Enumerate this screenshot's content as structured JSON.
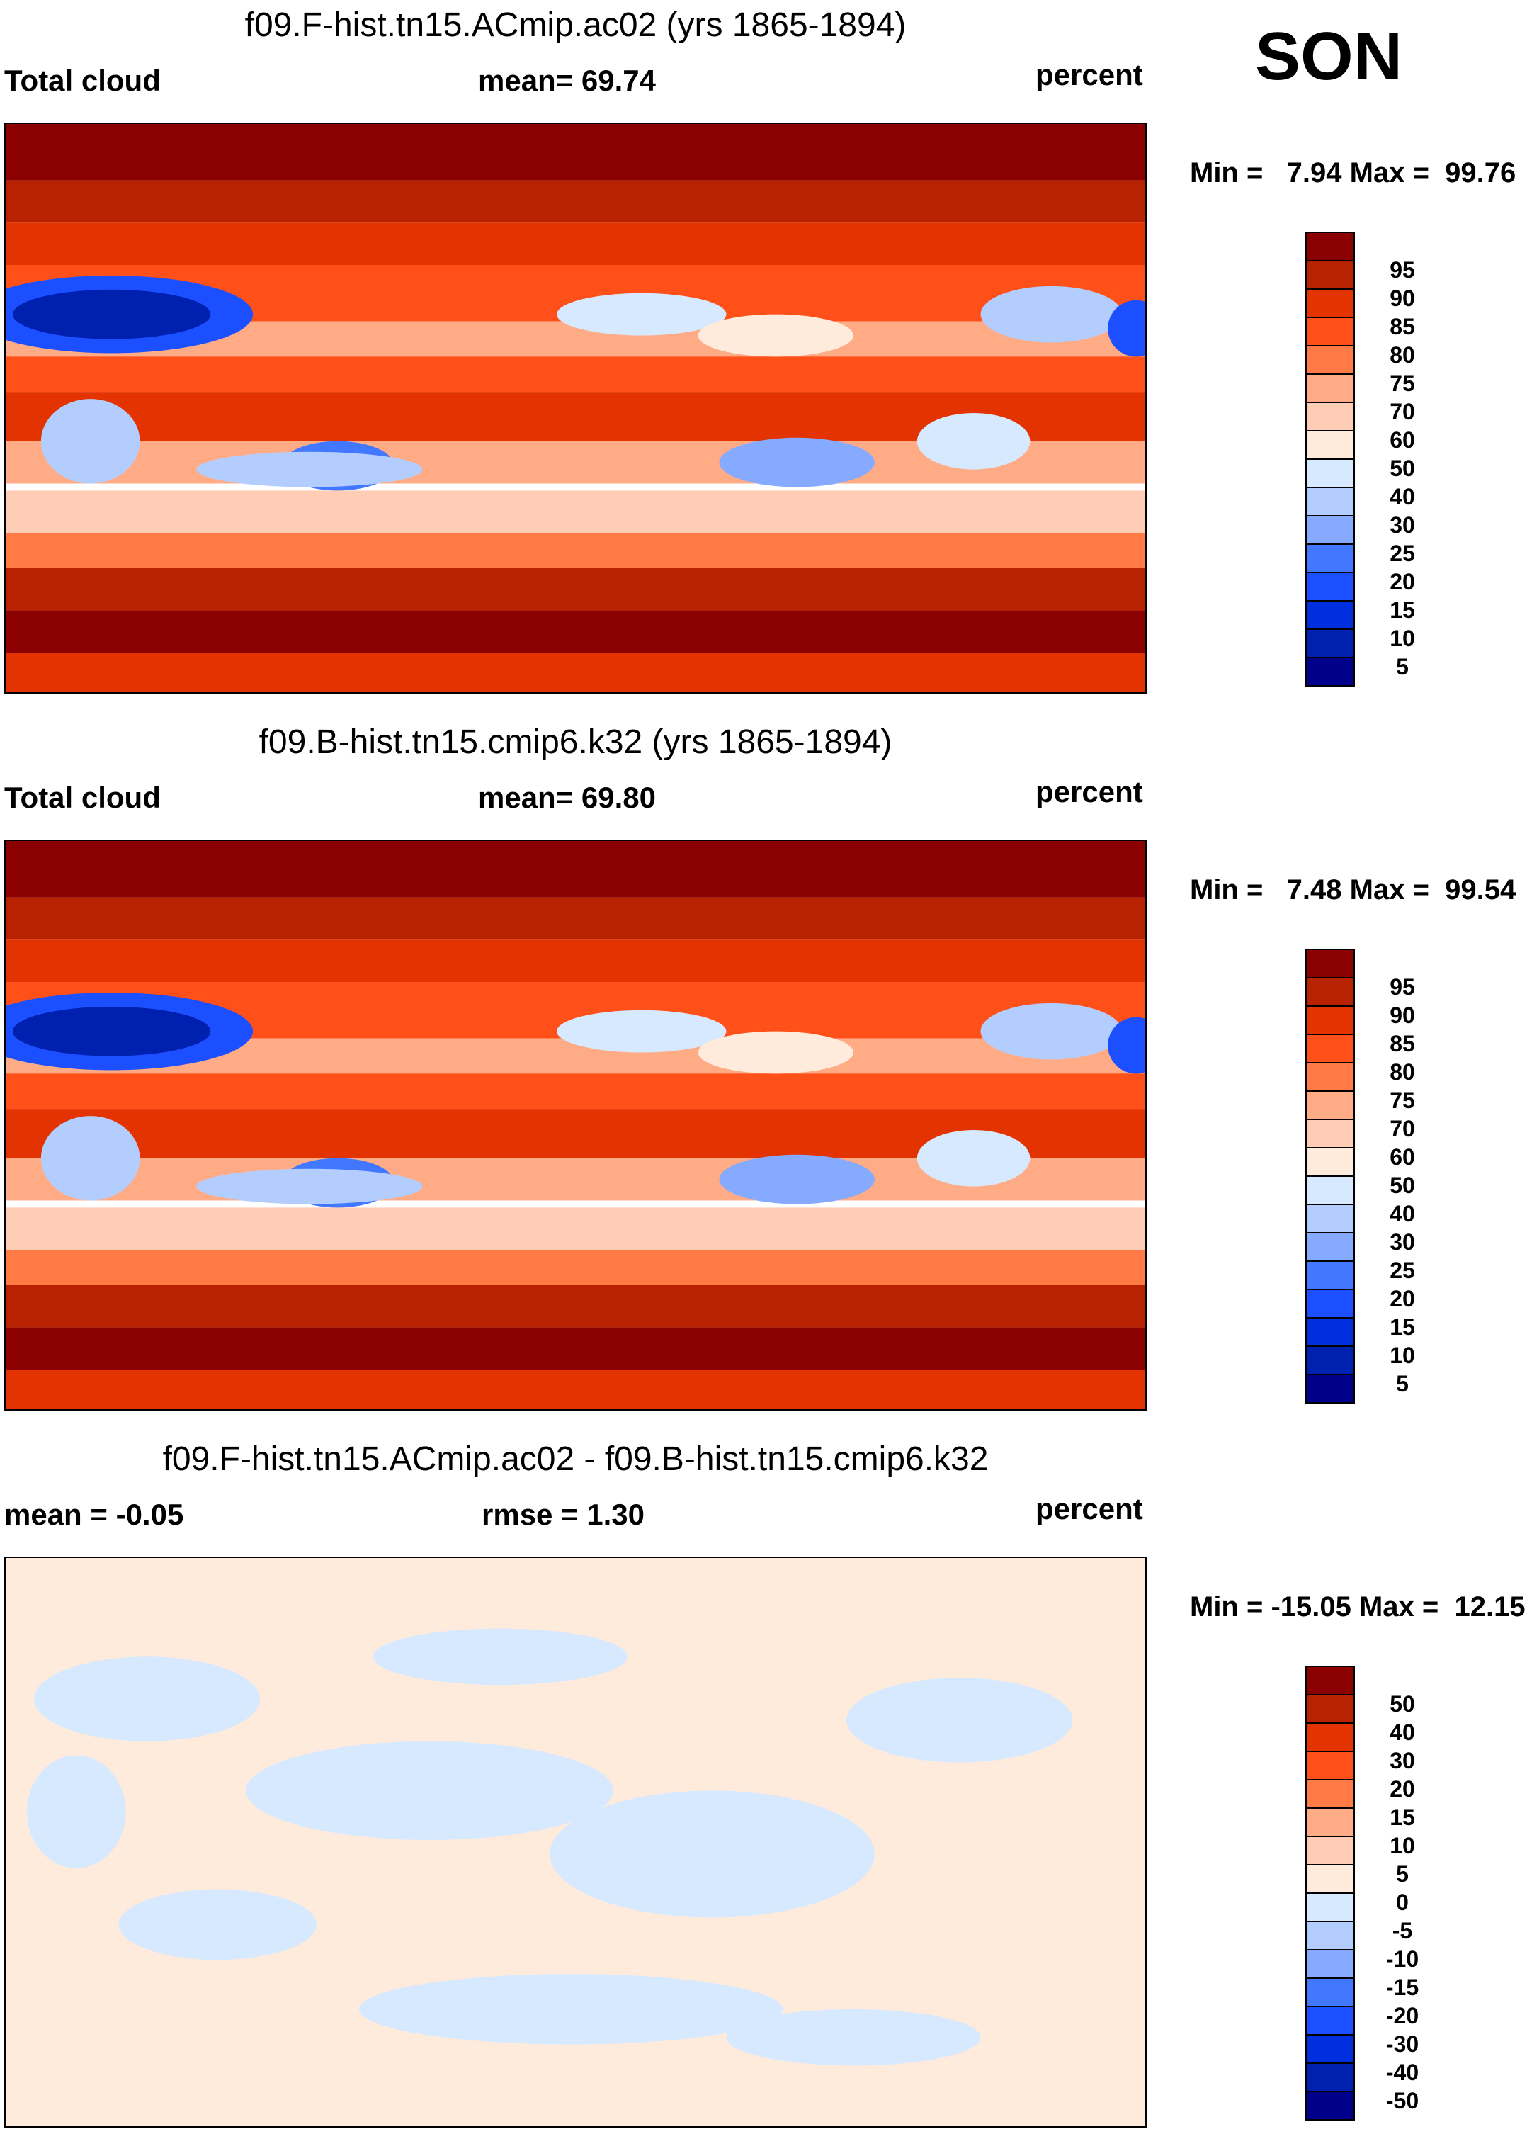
{
  "season": "SON",
  "panels": [
    {
      "title": "f09.F-hist.tn15.ACmip.ac02 (yrs 1865-1894)",
      "left_label": "Total cloud",
      "center_label": "mean=  69.74",
      "right_label": "percent",
      "minmax": "Min =   7.94 Max =  99.76",
      "type": "field"
    },
    {
      "title": "f09.B-hist.tn15.cmip6.k32 (yrs 1865-1894)",
      "left_label": "Total cloud",
      "center_label": "mean=  69.80",
      "right_label": "percent",
      "minmax": "Min =   7.48 Max =  99.54",
      "type": "field"
    },
    {
      "title": "f09.F-hist.tn15.ACmip.ac02 - f09.B-hist.tn15.cmip6.k32",
      "left_label": "mean =  -0.05",
      "center_label": "rmse =   1.30",
      "right_label": "percent",
      "minmax": "Min = -15.05 Max =  12.15",
      "type": "diff"
    }
  ],
  "chart_data": [
    {
      "type": "heatmap",
      "title": "f09.F-hist.tn15.ACmip.ac02 (yrs 1865-1894)",
      "variable": "Total cloud",
      "units": "percent",
      "mean": 69.74,
      "min": 7.94,
      "max": 99.76,
      "levels": [
        "95",
        "90",
        "85",
        "80",
        "75",
        "70",
        "60",
        "50",
        "40",
        "30",
        "25",
        "20",
        "15",
        "10",
        "5"
      ]
    },
    {
      "type": "heatmap",
      "title": "f09.B-hist.tn15.cmip6.k32 (yrs 1865-1894)",
      "variable": "Total cloud",
      "units": "percent",
      "mean": 69.8,
      "min": 7.48,
      "max": 99.54,
      "levels": [
        "95",
        "90",
        "85",
        "80",
        "75",
        "70",
        "60",
        "50",
        "40",
        "30",
        "25",
        "20",
        "15",
        "10",
        "5"
      ]
    },
    {
      "type": "heatmap",
      "title": "f09.F-hist.tn15.ACmip.ac02 - f09.B-hist.tn15.cmip6.k32",
      "units": "percent",
      "mean": -0.05,
      "rmse": 1.3,
      "min": -15.05,
      "max": 12.15,
      "levels": [
        "50",
        "40",
        "30",
        "20",
        "15",
        "10",
        "5",
        "0",
        "-5",
        "-10",
        "-15",
        "-20",
        "-30",
        "-40",
        "-50"
      ]
    }
  ],
  "colors": [
    "#8b0000",
    "#b82200",
    "#e23300",
    "#ff5019",
    "#ff7a45",
    "#ffab86",
    "#ffcdb5",
    "#ffebdc",
    "#d6e9ff",
    "#b3cdff",
    "#85aaff",
    "#4277ff",
    "#1c4fff",
    "#002fe0",
    "#0020b0",
    "#00008b"
  ]
}
